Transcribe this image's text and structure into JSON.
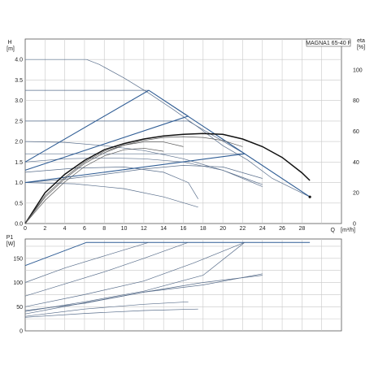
{
  "chart_data": [
    {
      "type": "line",
      "title": "MAGNA1 65-40 F",
      "ylabel": "H",
      "yunit": "[m]",
      "xlabel": "Q",
      "xunit": "[m³/h]",
      "y2label": "eta",
      "y2unit": "[%]",
      "xlim": [
        0,
        32
      ],
      "ylim": [
        0,
        4.5
      ],
      "y2lim": [
        0,
        120
      ],
      "xticks": [
        "0",
        "2",
        "4",
        "6",
        "8",
        "10",
        "12",
        "14",
        "16",
        "18",
        "20",
        "22",
        "24",
        "26",
        "28"
      ],
      "yticks": [
        "0.0",
        "0.5",
        "1.0",
        "1.5",
        "2.0",
        "2.5",
        "3.0",
        "3.5",
        "4.0"
      ],
      "y2ticks": [
        "0",
        "20",
        "40",
        "60",
        "80",
        "100"
      ],
      "grid": true,
      "series": [
        {
          "kind": "head",
          "x": [
            0,
            6.2,
            7.5,
            10,
            12.5,
            15,
            17.5,
            20,
            22.5,
            25,
            28.8
          ],
          "y": [
            4.0,
            4.0,
            3.88,
            3.55,
            3.18,
            2.78,
            2.35,
            1.9,
            1.55,
            1.1,
            0.65
          ]
        },
        {
          "kind": "head",
          "x": [
            0,
            12.5,
            16.5
          ],
          "y": [
            3.25,
            3.25,
            2.62
          ]
        },
        {
          "kind": "head",
          "x": [
            0,
            16.5,
            22.2
          ],
          "y": [
            2.5,
            2.5,
            1.7
          ]
        },
        {
          "kind": "head",
          "x": [
            0,
            22.2,
            28.8
          ],
          "y": [
            1.7,
            1.7,
            0.65
          ]
        },
        {
          "kind": "head",
          "x": [
            0,
            4,
            8,
            12,
            16,
            20,
            22.5,
            24
          ],
          "y": [
            2.0,
            1.98,
            1.9,
            1.78,
            1.58,
            1.3,
            1.08,
            0.95
          ]
        },
        {
          "kind": "head",
          "x": [
            0,
            4,
            8,
            12,
            16,
            20,
            24
          ],
          "y": [
            1.0,
            1.08,
            1.2,
            1.33,
            1.42,
            1.38,
            1.1
          ]
        },
        {
          "kind": "head",
          "x": [
            0,
            5,
            10,
            14,
            17.5
          ],
          "y": [
            1.0,
            0.97,
            0.85,
            0.65,
            0.4
          ]
        },
        {
          "kind": "head",
          "x": [
            0,
            4,
            8,
            12,
            16,
            20,
            24
          ],
          "y": [
            1.5,
            1.58,
            1.6,
            1.58,
            1.5,
            1.3,
            0.9
          ]
        },
        {
          "kind": "head",
          "x": [
            0,
            5,
            10,
            14,
            16.5,
            17.5
          ],
          "y": [
            1.25,
            1.35,
            1.38,
            1.25,
            1.0,
            0.6
          ]
        },
        {
          "kind": "system",
          "x": [
            0,
            12.5,
            28.8
          ],
          "y": [
            1.5,
            3.25,
            0.65
          ]
        },
        {
          "kind": "system",
          "x": [
            0,
            16.5
          ],
          "y": [
            1.3,
            2.62
          ]
        },
        {
          "kind": "system",
          "x": [
            0,
            22.2
          ],
          "y": [
            1.0,
            1.7
          ]
        },
        {
          "kind": "eta",
          "x": [
            0,
            2,
            4,
            6,
            8,
            10,
            12,
            14,
            16,
            18,
            20,
            22,
            24,
            26,
            28,
            28.8
          ],
          "y": [
            0,
            20,
            32,
            41,
            48,
            52,
            55,
            57,
            58,
            58.5,
            58,
            55,
            50,
            43,
            33,
            28
          ]
        },
        {
          "kind": "eta",
          "x": [
            0,
            2,
            4,
            6,
            8,
            10,
            12,
            14,
            16,
            18,
            20,
            22
          ],
          "y": [
            0,
            18,
            30,
            40,
            47,
            51,
            54,
            56,
            56.5,
            56,
            54,
            50
          ]
        },
        {
          "kind": "eta",
          "x": [
            0,
            2,
            4,
            6,
            8,
            10,
            12,
            14,
            16
          ],
          "y": [
            0,
            17,
            29,
            39,
            46,
            51,
            53,
            53,
            50
          ]
        },
        {
          "kind": "eta",
          "x": [
            0,
            2,
            4,
            6,
            8,
            10,
            12,
            14
          ],
          "y": [
            0,
            15,
            27,
            37,
            44,
            48,
            49,
            47
          ]
        }
      ]
    },
    {
      "type": "line",
      "ylabel": "P1",
      "yunit": "[W]",
      "xlim": [
        0,
        32
      ],
      "ylim": [
        0,
        190
      ],
      "yticks": [
        "0",
        "50",
        "100",
        "150"
      ],
      "grid": true,
      "series": [
        {
          "x": [
            0,
            6.2,
            28.8
          ],
          "y": [
            135,
            183,
            183
          ]
        },
        {
          "x": [
            0,
            4,
            8,
            12.5
          ],
          "y": [
            100,
            130,
            155,
            183
          ]
        },
        {
          "x": [
            0,
            4,
            8,
            12,
            16.5
          ],
          "y": [
            72,
            97,
            122,
            150,
            183
          ]
        },
        {
          "x": [
            0,
            6,
            12,
            17,
            22.2
          ],
          "y": [
            50,
            75,
            103,
            140,
            183
          ]
        },
        {
          "x": [
            0,
            6,
            12,
            18,
            22.2
          ],
          "y": [
            40,
            60,
            82,
            115,
            183
          ]
        },
        {
          "x": [
            0,
            6,
            12,
            18,
            24
          ],
          "y": [
            42,
            57,
            80,
            95,
            118
          ]
        },
        {
          "x": [
            0,
            6,
            12,
            18,
            24
          ],
          "y": [
            35,
            58,
            80,
            100,
            115
          ]
        },
        {
          "x": [
            0,
            6,
            12,
            17.5
          ],
          "y": [
            28,
            36,
            42,
            45
          ]
        },
        {
          "x": [
            0,
            6,
            12,
            16.5
          ],
          "y": [
            30,
            45,
            55,
            60
          ]
        }
      ]
    }
  ]
}
